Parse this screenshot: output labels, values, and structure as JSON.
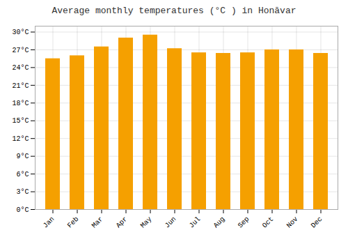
{
  "chart_data": {
    "type": "bar",
    "title": "Average monthly temperatures (°C ) in Honāvar",
    "categories": [
      "Jan",
      "Feb",
      "Mar",
      "Apr",
      "May",
      "Jun",
      "Jul",
      "Aug",
      "Sep",
      "Oct",
      "Nov",
      "Dec"
    ],
    "values": [
      25.5,
      26.0,
      27.5,
      29.0,
      29.5,
      27.2,
      26.5,
      26.4,
      26.5,
      27.0,
      27.0,
      26.4
    ],
    "color": "#F5A000",
    "ylim": [
      0,
      31
    ],
    "yticks": [
      {
        "value": 0,
        "label": "0°C"
      },
      {
        "value": 3,
        "label": "3°C"
      },
      {
        "value": 6,
        "label": "6°C"
      },
      {
        "value": 9,
        "label": "9°C"
      },
      {
        "value": 12,
        "label": "12°C"
      },
      {
        "value": 15,
        "label": "15°C"
      },
      {
        "value": 18,
        "label": "18°C"
      },
      {
        "value": 21,
        "label": "21°C"
      },
      {
        "value": 24,
        "label": "24°C"
      },
      {
        "value": 27,
        "label": "27°C"
      },
      {
        "value": 30,
        "label": "30°C"
      }
    ],
    "grid": true
  }
}
